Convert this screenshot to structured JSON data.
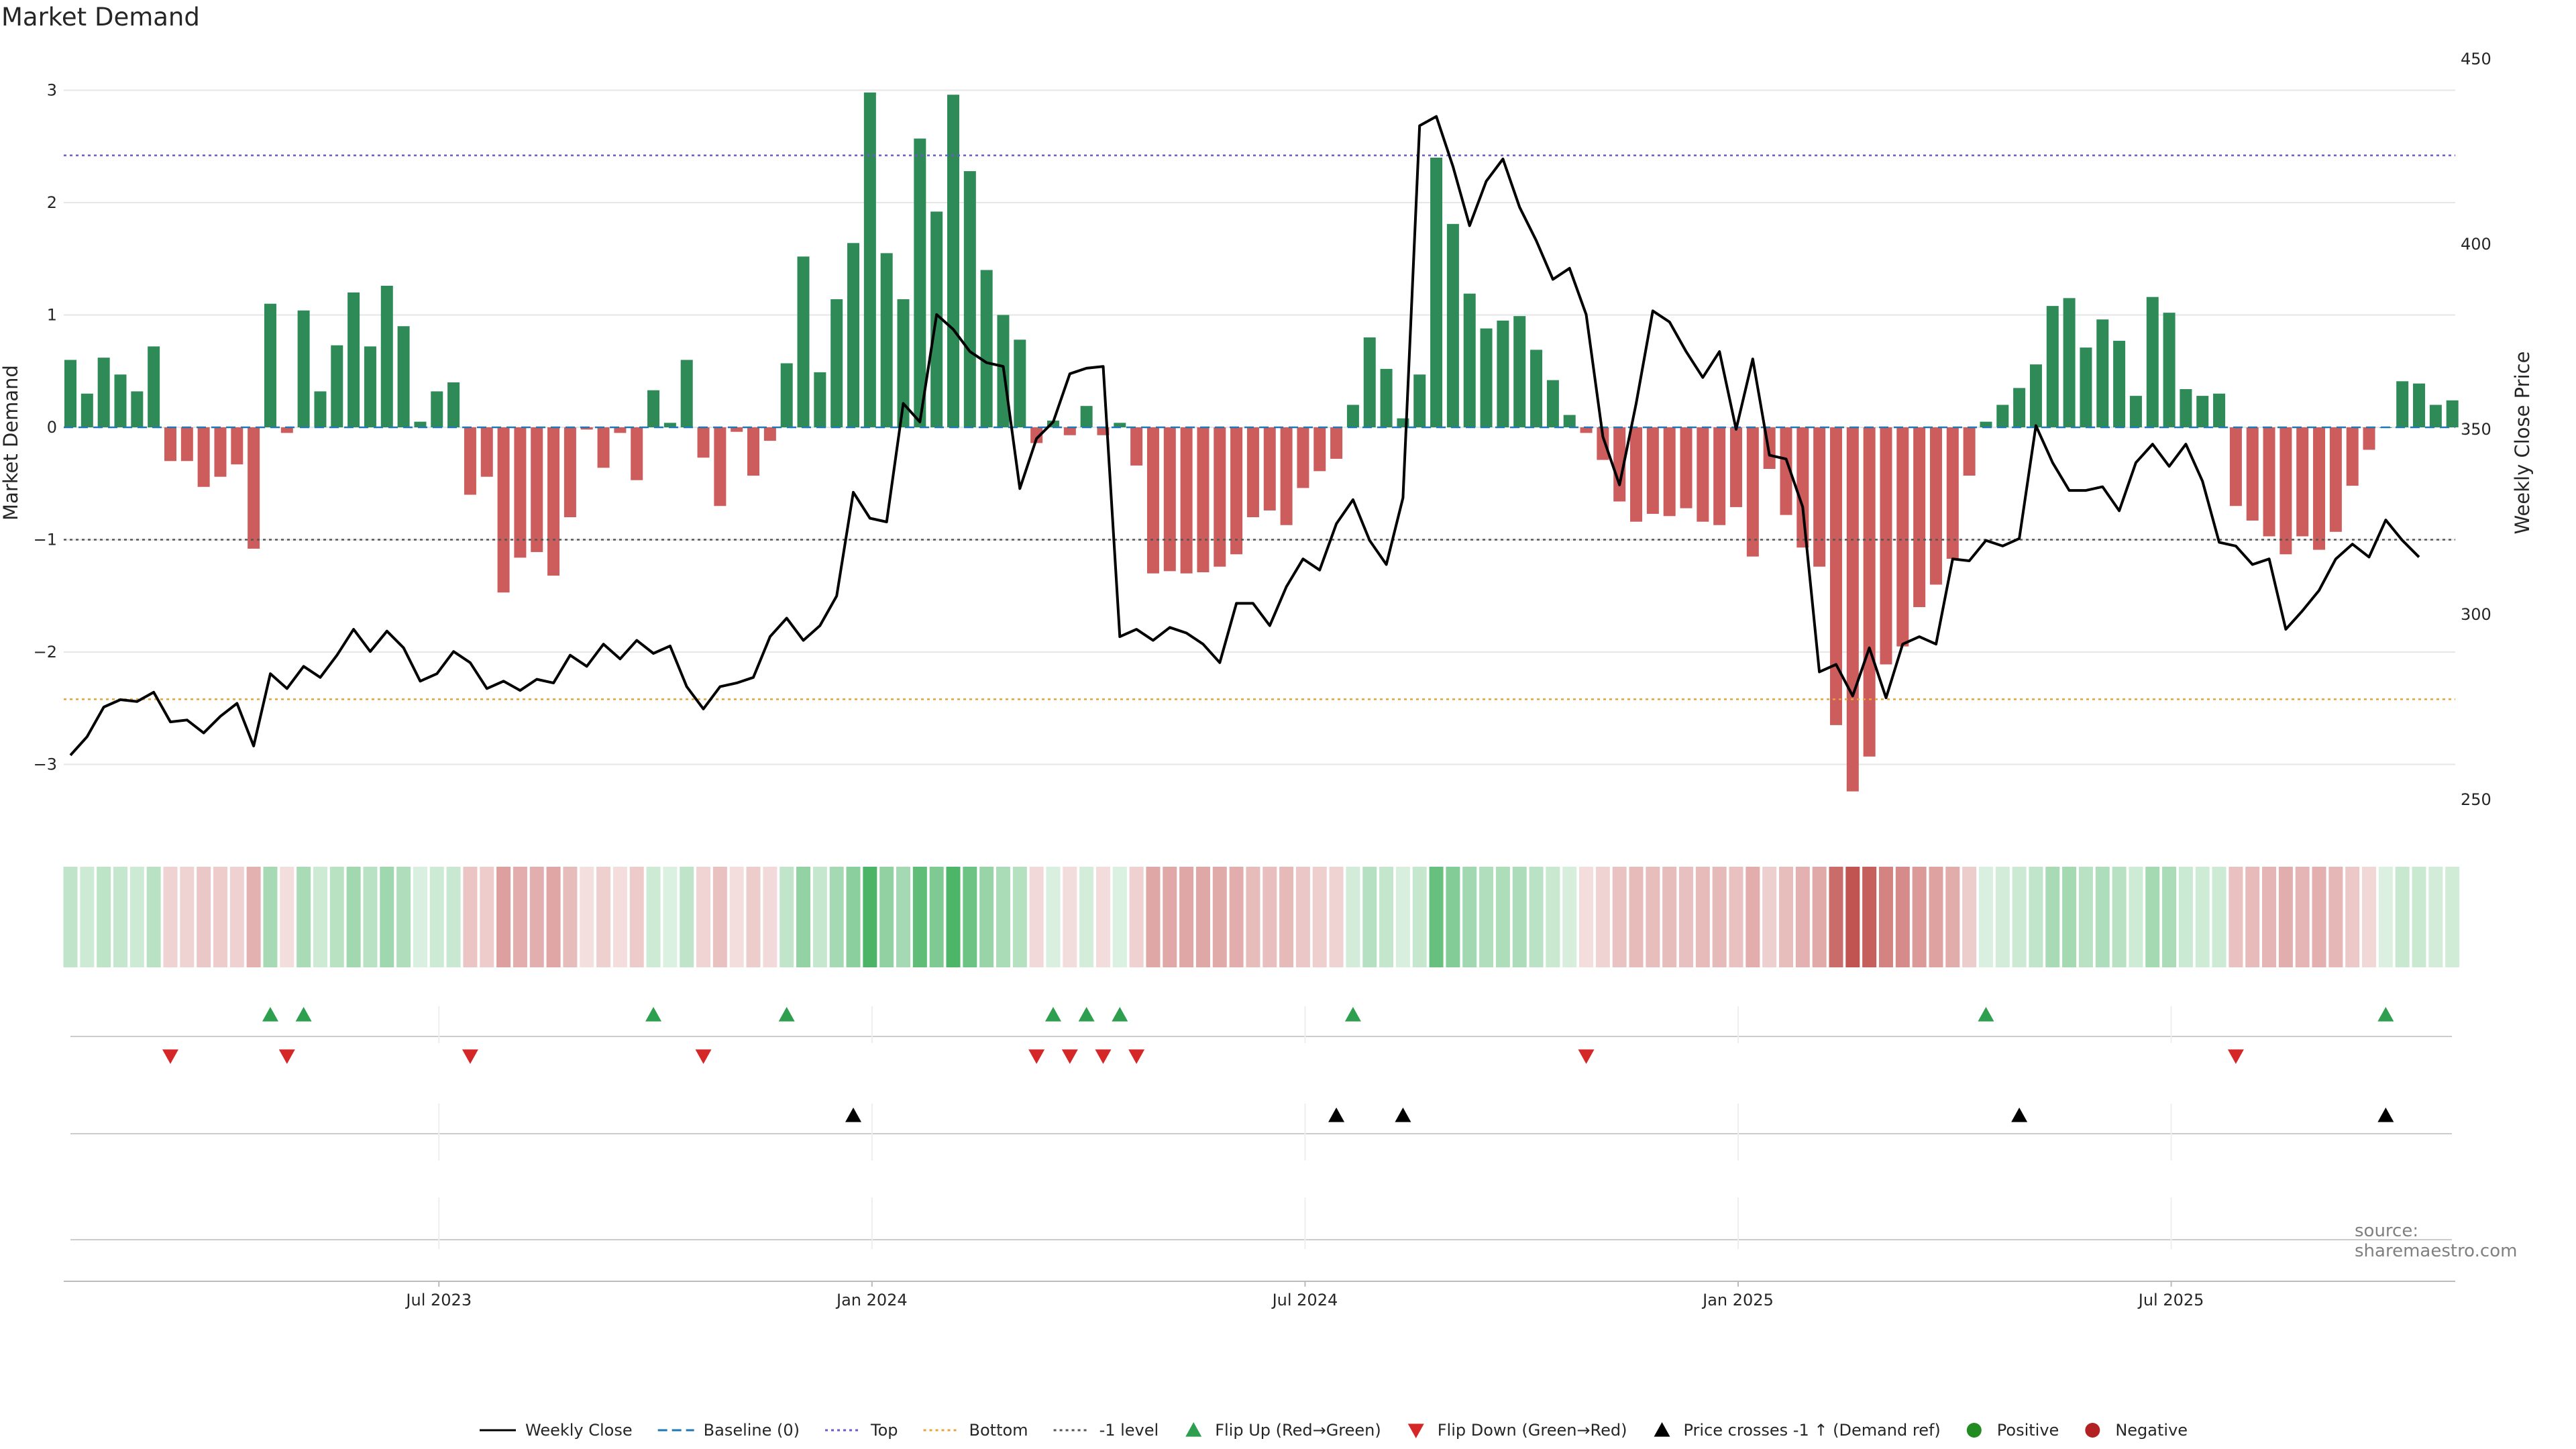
{
  "title": "Market Demand",
  "source": "source: sharemaestro.com",
  "chart_data": {
    "type": "bar",
    "title": "Market Demand",
    "ylabel_left": "Market Demand",
    "ylabel_right": "Weekly Close Price",
    "ylim_left": [
      -3.5,
      3.3
    ],
    "ylim_right": [
      245,
      452
    ],
    "yticks_left": [
      3,
      2,
      1,
      0,
      -1,
      -2,
      -3
    ],
    "yticks_left_labels": [
      "3",
      "2",
      "1",
      "0",
      "−1",
      "−2",
      "−3"
    ],
    "yticks_right": [
      450,
      400,
      350,
      300,
      250
    ],
    "yticks_right_labels": [
      "450",
      "400",
      "350",
      "300",
      "250"
    ],
    "x_start_week": 0,
    "x_tick_weeks": [
      22,
      48,
      74,
      100,
      126
    ],
    "x_tick_labels": [
      "Jul 2023",
      "Jan 2024",
      "Jul 2024",
      "Jan 2025",
      "Jul 2025"
    ],
    "reference_lines": [
      {
        "name": "Top",
        "value": 2.42,
        "color": "#6a5acd"
      },
      {
        "name": "Bottom",
        "value": -2.42,
        "color": "#e8a33d"
      },
      {
        "name": "-1 level",
        "value": -1,
        "color": "#555555"
      },
      {
        "name": "Baseline (0)",
        "value": 0,
        "color": "#1f77b4"
      }
    ],
    "demand": [
      0.6,
      0.3,
      0.62,
      0.47,
      0.32,
      0.72,
      -0.3,
      -0.3,
      -0.53,
      -0.44,
      -0.33,
      -1.08,
      1.1,
      -0.05,
      1.04,
      0.32,
      0.73,
      1.2,
      0.72,
      1.26,
      0.9,
      0.05,
      0.32,
      0.4,
      -0.6,
      -0.44,
      -1.47,
      -1.16,
      -1.11,
      -1.32,
      -0.8,
      -0.02,
      -0.36,
      -0.05,
      -0.47,
      0.33,
      0.04,
      0.6,
      -0.27,
      -0.7,
      -0.04,
      -0.43,
      -0.12,
      0.57,
      1.52,
      0.49,
      1.14,
      1.64,
      2.98,
      1.55,
      1.14,
      2.57,
      1.92,
      2.96,
      2.28,
      1.4,
      1.0,
      0.78,
      -0.14,
      0.06,
      -0.07,
      0.19,
      -0.07,
      0.04,
      -0.34,
      -1.3,
      -1.28,
      -1.3,
      -1.29,
      -1.24,
      -1.13,
      -0.8,
      -0.74,
      -0.87,
      -0.54,
      -0.39,
      -0.28,
      0.2,
      0.8,
      0.52,
      0.08,
      0.47,
      2.4,
      1.81,
      1.19,
      0.88,
      0.95,
      0.99,
      0.69,
      0.42,
      0.11,
      -0.05,
      -0.29,
      -0.66,
      -0.84,
      -0.77,
      -0.79,
      -0.72,
      -0.84,
      -0.87,
      -0.71,
      -1.15,
      -0.37,
      -0.78,
      -1.07,
      -1.24,
      -2.65,
      -3.24,
      -2.93,
      -2.11,
      -1.95,
      -1.6,
      -1.4,
      -1.17,
      -0.43,
      0.05,
      0.2,
      0.35,
      0.56,
      1.08,
      1.15,
      0.71,
      0.96,
      0.77,
      0.28,
      1.16,
      1.02,
      0.34,
      0.28,
      0.3,
      -0.7,
      -0.83,
      -0.97,
      -1.13,
      -0.97,
      -1.09,
      -0.93,
      -0.52,
      -0.2,
      0.0,
      0.41,
      0.39,
      0.2,
      0.24
    ],
    "close": [
      262,
      267,
      275,
      277,
      276.5,
      279,
      271,
      271.5,
      268,
      272.5,
      276,
      264.5,
      284,
      280,
      286,
      283,
      289,
      296,
      290,
      295.5,
      291,
      282,
      284,
      290,
      287,
      280,
      282,
      279.5,
      282.5,
      281.5,
      289,
      286,
      292,
      288,
      293,
      289.5,
      291.5,
      280.5,
      274.5,
      280.5,
      281.5,
      283,
      294,
      299,
      293,
      297,
      305,
      333,
      326,
      325,
      357,
      352,
      381,
      377,
      371,
      368,
      367,
      334,
      347.5,
      352,
      365,
      366.5,
      367,
      294,
      296,
      293,
      296.5,
      295,
      292,
      287,
      303,
      303,
      297,
      307.5,
      315,
      312,
      324.5,
      331,
      320,
      313.5,
      331.5,
      432,
      434.5,
      421,
      405,
      417,
      423,
      410,
      401,
      390.5,
      393.5,
      381,
      348,
      335,
      357,
      382,
      379,
      371,
      364,
      371,
      350,
      369,
      343,
      342,
      329,
      284.5,
      286.5,
      278,
      291,
      277.5,
      292,
      294,
      292,
      315,
      314.5,
      320,
      318.5,
      320.5,
      351,
      341,
      333.5,
      333.5,
      334.5,
      328,
      341,
      346,
      340,
      346,
      336,
      319.5,
      318.5,
      313.5,
      315,
      296,
      301,
      306.5,
      315,
      319,
      315.5,
      325.5,
      320,
      315.5
    ],
    "legend": [
      {
        "label": "Weekly Close",
        "kind": "line-solid",
        "color": "#000000"
      },
      {
        "label": "Baseline (0)",
        "kind": "line-dash",
        "color": "#1f77b4"
      },
      {
        "label": "Top",
        "kind": "line-dot",
        "color": "#6a5acd"
      },
      {
        "label": "Bottom",
        "kind": "line-dot",
        "color": "#e8a33d"
      },
      {
        "label": "-1 level",
        "kind": "line-dot",
        "color": "#555555"
      },
      {
        "label": "Flip Up (Red→Green)",
        "kind": "tri-up",
        "color": "#2e9e4f"
      },
      {
        "label": "Flip Down (Green→Red)",
        "kind": "tri-down",
        "color": "#d62728"
      },
      {
        "label": "Price crosses -1 ↑ (Demand ref)",
        "kind": "tri-up",
        "color": "#000000"
      },
      {
        "label": "Positive",
        "kind": "dot",
        "color": "#228b22"
      },
      {
        "label": "Negative",
        "kind": "dot",
        "color": "#b22222"
      }
    ],
    "colors": {
      "positive_bar": "#2e8b57",
      "negative_bar": "#cd5c5c",
      "price_line": "#000000",
      "flip_up": "#2e9e4f",
      "flip_down": "#d62728",
      "cross": "#000000"
    }
  }
}
